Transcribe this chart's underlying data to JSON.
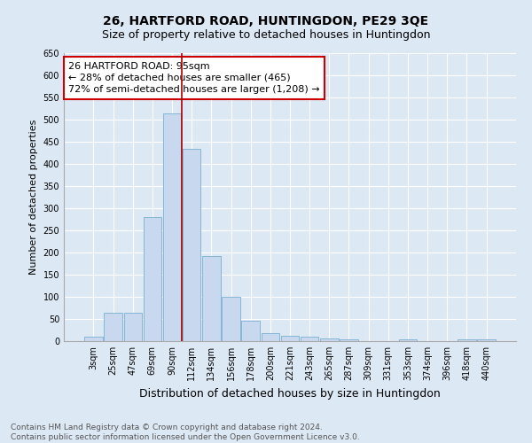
{
  "title": "26, HARTFORD ROAD, HUNTINGDON, PE29 3QE",
  "subtitle": "Size of property relative to detached houses in Huntingdon",
  "xlabel": "Distribution of detached houses by size in Huntingdon",
  "ylabel": "Number of detached properties",
  "categories": [
    "3sqm",
    "25sqm",
    "47sqm",
    "69sqm",
    "90sqm",
    "112sqm",
    "134sqm",
    "156sqm",
    "178sqm",
    "200sqm",
    "221sqm",
    "243sqm",
    "265sqm",
    "287sqm",
    "309sqm",
    "331sqm",
    "353sqm",
    "374sqm",
    "396sqm",
    "418sqm",
    "440sqm"
  ],
  "values": [
    10,
    65,
    65,
    280,
    515,
    435,
    193,
    100,
    46,
    18,
    12,
    10,
    6,
    4,
    0,
    0,
    4,
    0,
    0,
    5,
    5
  ],
  "bar_color": "#c8d8ee",
  "bar_edge_color": "#7aaed0",
  "property_line_x": 4.5,
  "property_line_label": "26 HARTFORD ROAD: 95sqm",
  "annotation_line1": "← 28% of detached houses are smaller (465)",
  "annotation_line2": "72% of semi-detached houses are larger (1,208) →",
  "annotation_box_color": "#ffffff",
  "annotation_box_edge_color": "#cc0000",
  "vline_color": "#aa0000",
  "ylim": [
    0,
    650
  ],
  "yticks": [
    0,
    50,
    100,
    150,
    200,
    250,
    300,
    350,
    400,
    450,
    500,
    550,
    600,
    650
  ],
  "background_color": "#dde8f5",
  "plot_bg_color": "#dde8f5",
  "footer_line1": "Contains HM Land Registry data © Crown copyright and database right 2024.",
  "footer_line2": "Contains public sector information licensed under the Open Government Licence v3.0.",
  "title_fontsize": 10,
  "subtitle_fontsize": 9,
  "xlabel_fontsize": 9,
  "ylabel_fontsize": 8,
  "tick_fontsize": 7,
  "annotation_fontsize": 8,
  "footer_fontsize": 6.5
}
